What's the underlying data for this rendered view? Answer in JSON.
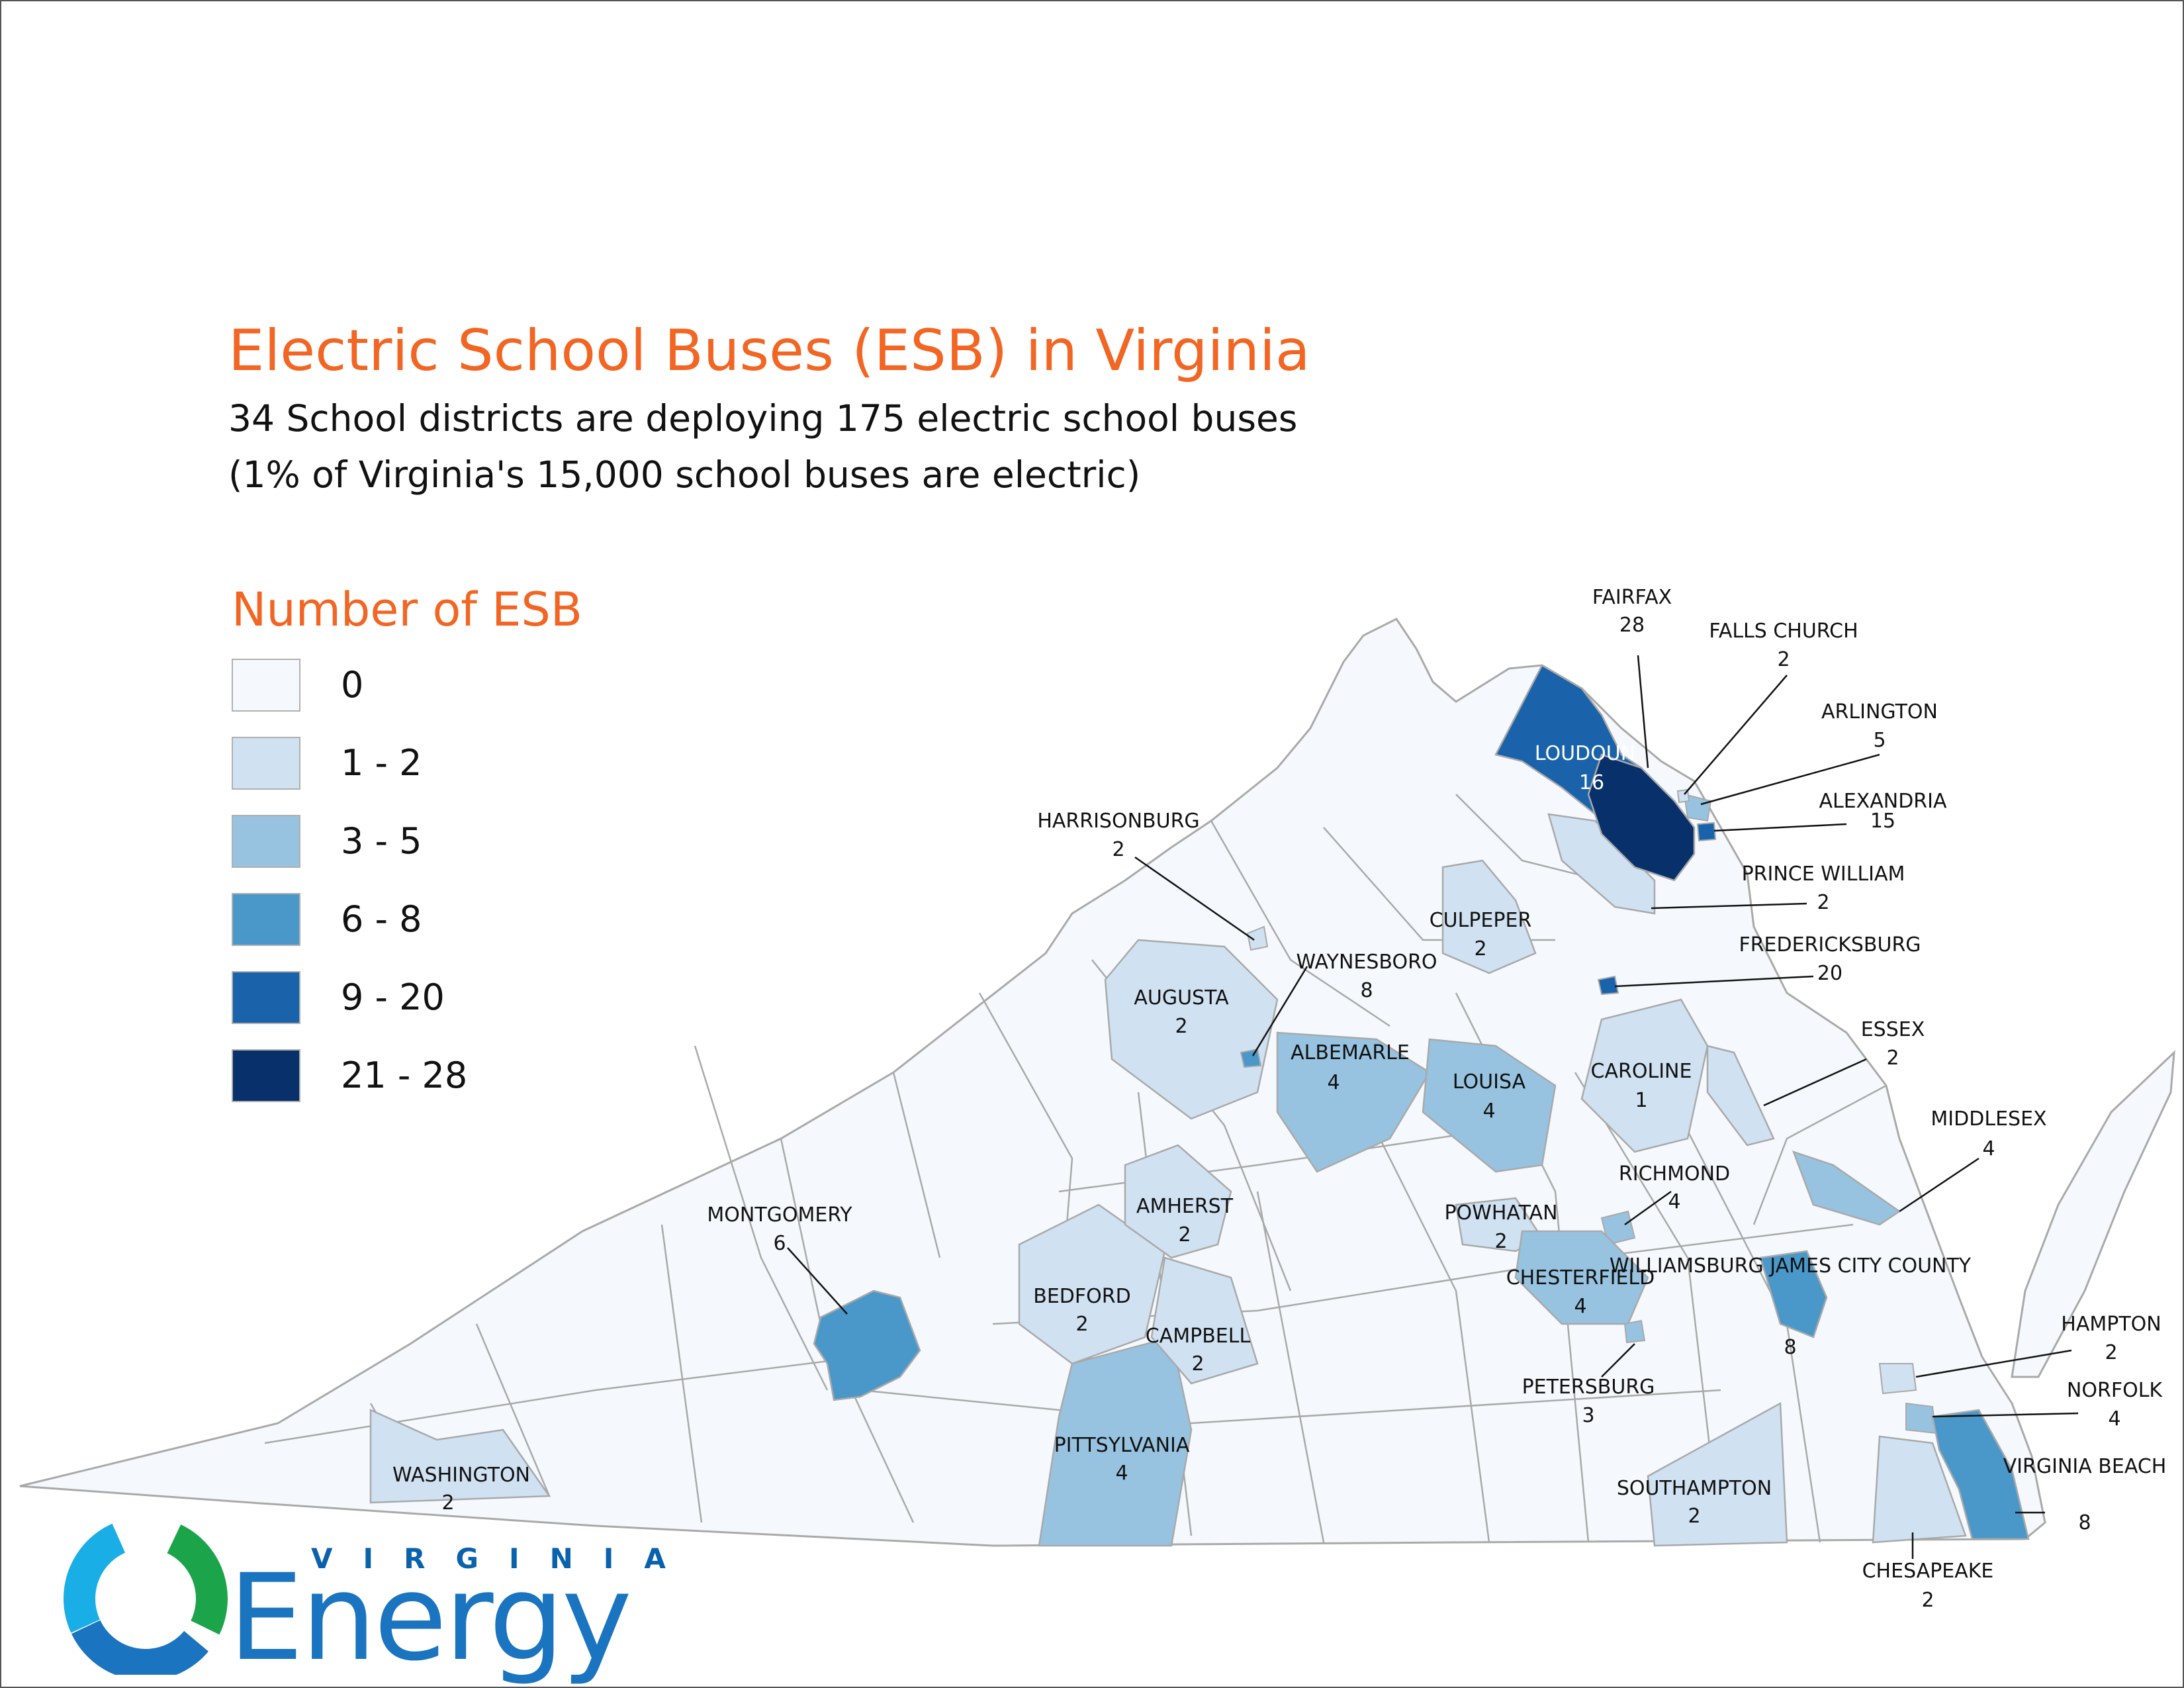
{
  "title": "Electric School Buses (ESB) in Virginia",
  "subtitle_lines": [
    "34 School districts are deploying 175 electric school buses",
    "(1% of Virginia's 15,000 school buses are electric)"
  ],
  "legend": {
    "title": "Number of ESB",
    "items": [
      {
        "label": "0",
        "color": "#f5f9fd"
      },
      {
        "label": "1 - 2",
        "color": "#d0e1f2"
      },
      {
        "label": "3 - 5",
        "color": "#97c3e0"
      },
      {
        "label": "6 - 8",
        "color": "#4a98c9"
      },
      {
        "label": "9 - 20",
        "color": "#1a63ab"
      },
      {
        "label": "21 - 28",
        "color": "#08306b"
      }
    ]
  },
  "colors": {
    "title_orange": "#f26522",
    "county_border": "#a9a9a9",
    "leader_line": "#111111",
    "logo_blue": "#1a74c0",
    "logo_green": "#1ba44a",
    "logo_cyan": "#19aee6"
  },
  "districts": [
    {
      "name": "FAIRFAX",
      "count": "28",
      "bin": 5
    },
    {
      "name": "FALLS CHURCH",
      "count": "2",
      "bin": 1
    },
    {
      "name": "ARLINGTON",
      "count": "5",
      "bin": 2
    },
    {
      "name": "ALEXANDRIA",
      "count": "15",
      "bin": 4
    },
    {
      "name": "LOUDOUN",
      "count": "16",
      "bin": 4
    },
    {
      "name": "PRINCE WILLIAM",
      "count": "2",
      "bin": 1
    },
    {
      "name": "HARRISONBURG",
      "count": "2",
      "bin": 1
    },
    {
      "name": "CULPEPER",
      "count": "2",
      "bin": 1
    },
    {
      "name": "FREDERICKSBURG",
      "count": "20",
      "bin": 4
    },
    {
      "name": "WAYNESBORO",
      "count": "8",
      "bin": 3
    },
    {
      "name": "AUGUSTA",
      "count": "2",
      "bin": 1
    },
    {
      "name": "ALBEMARLE",
      "count": "4",
      "bin": 2
    },
    {
      "name": "LOUISA",
      "count": "4",
      "bin": 2
    },
    {
      "name": "CAROLINE",
      "count": "1",
      "bin": 1
    },
    {
      "name": "ESSEX",
      "count": "2",
      "bin": 1
    },
    {
      "name": "MIDDLESEX",
      "count": "4",
      "bin": 2
    },
    {
      "name": "RICHMOND",
      "count": "4",
      "bin": 2
    },
    {
      "name": "POWHATAN",
      "count": "2",
      "bin": 1
    },
    {
      "name": "CHESTERFIELD",
      "count": "4",
      "bin": 2
    },
    {
      "name": "WILLIAMSBURG JAMES CITY COUNTY",
      "count": "8",
      "bin": 3
    },
    {
      "name": "MONTGOMERY",
      "count": "6",
      "bin": 3
    },
    {
      "name": "AMHERST",
      "count": "2",
      "bin": 1
    },
    {
      "name": "BEDFORD",
      "count": "2",
      "bin": 1
    },
    {
      "name": "CAMPBELL",
      "count": "2",
      "bin": 1
    },
    {
      "name": "PETERSBURG",
      "count": "3",
      "bin": 2
    },
    {
      "name": "HAMPTON",
      "count": "2",
      "bin": 1
    },
    {
      "name": "NORFOLK",
      "count": "4",
      "bin": 2
    },
    {
      "name": "VIRGINIA BEACH",
      "count": "8",
      "bin": 3
    },
    {
      "name": "PITTSYLVANIA",
      "count": "4",
      "bin": 2
    },
    {
      "name": "WASHINGTON",
      "count": "2",
      "bin": 1
    },
    {
      "name": "SOUTHAMPTON",
      "count": "2",
      "bin": 1
    },
    {
      "name": "CHESAPEAKE",
      "count": "2",
      "bin": 1
    }
  ],
  "logo": {
    "small_text": "VIRGINIA",
    "big_text": "Energy"
  }
}
